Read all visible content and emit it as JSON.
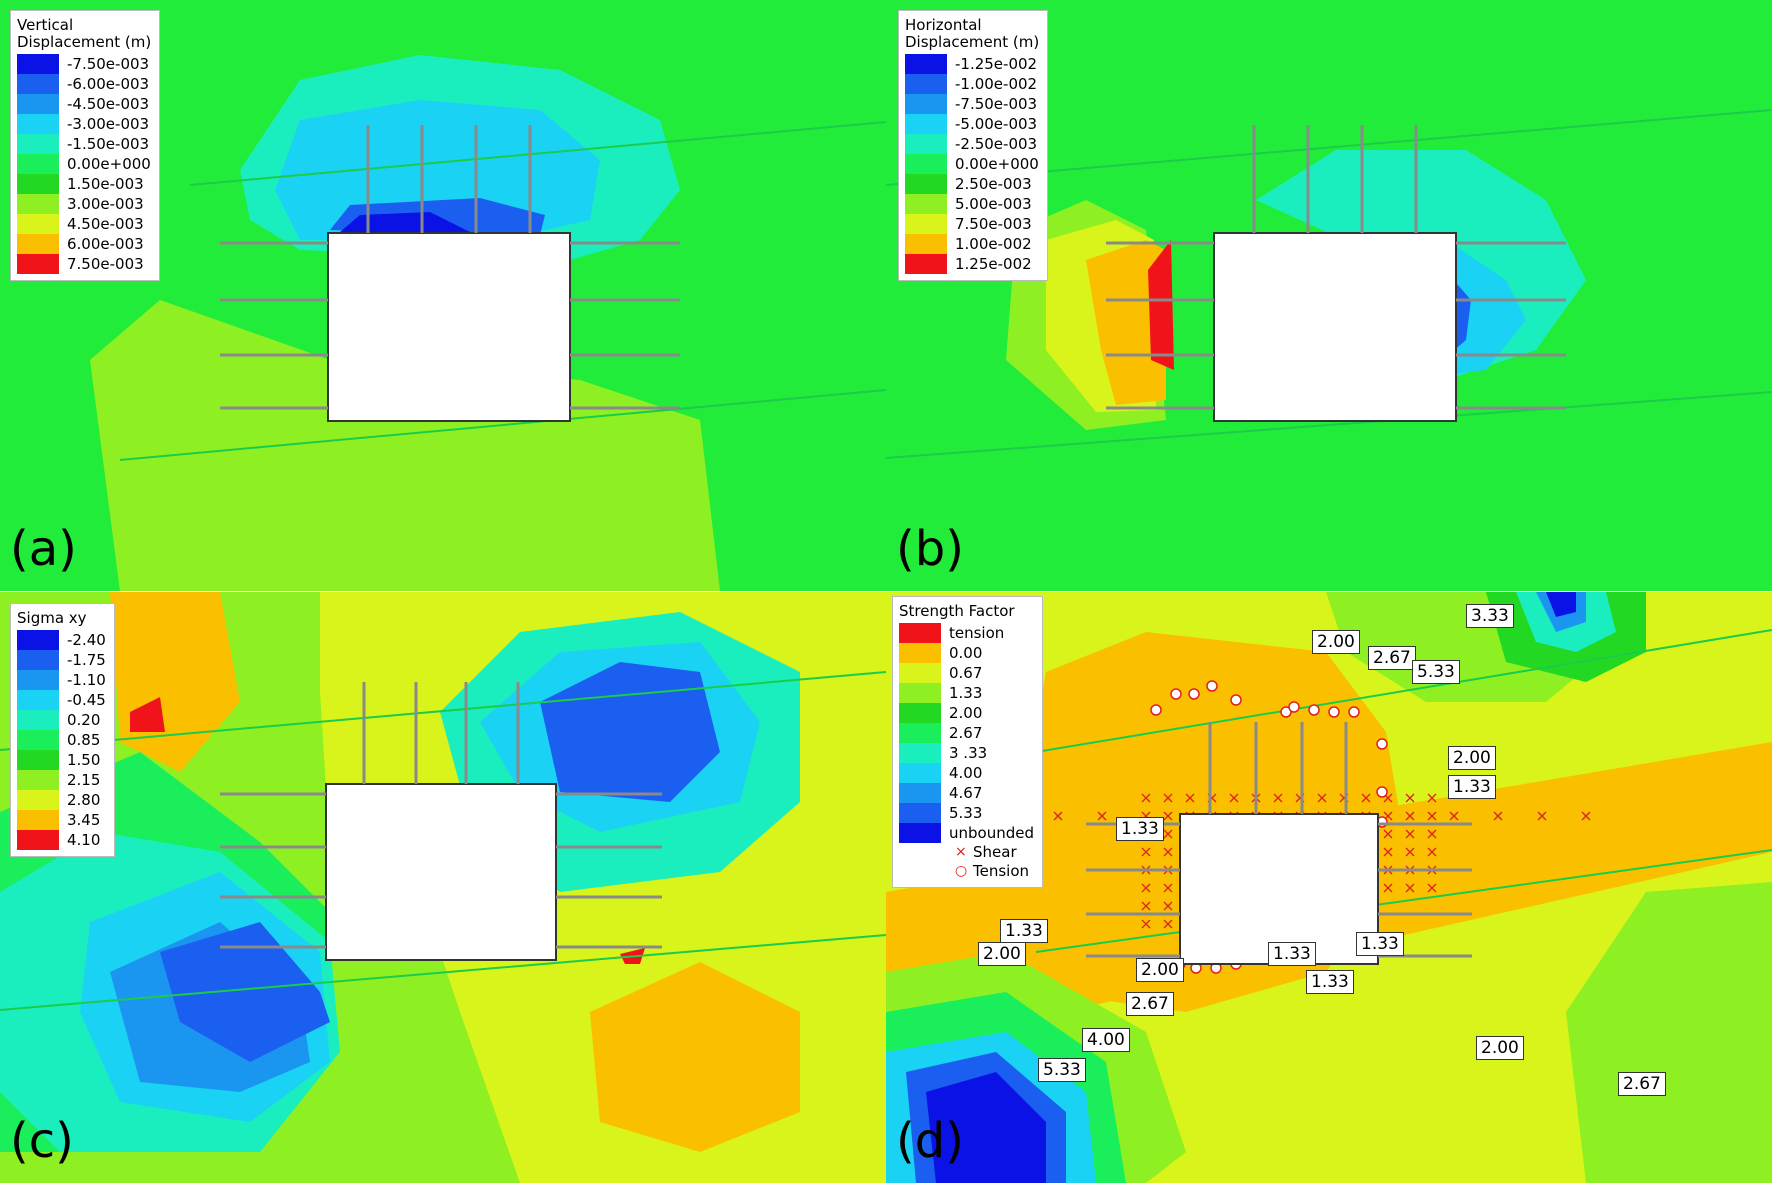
{
  "panels": {
    "a": {
      "letter": "(a)",
      "legend": {
        "title": "Vertical\nDisplacement (m)",
        "entries": [
          "-7.50e-003",
          "-6.00e-003",
          "-4.50e-003",
          "-3.00e-003",
          "-1.50e-003",
          "0.00e+000",
          "1.50e-003",
          "3.00e-003",
          "4.50e-003",
          "6.00e-003",
          "7.50e-003"
        ]
      }
    },
    "b": {
      "letter": "(b)",
      "legend": {
        "title": "Horizontal\nDisplacement (m)",
        "entries": [
          "-1.25e-002",
          "-1.00e-002",
          "-7.50e-003",
          "-5.00e-003",
          "-2.50e-003",
          "0.00e+000",
          "2.50e-003",
          "5.00e-003",
          "7.50e-003",
          "1.00e-002",
          "1.25e-002"
        ]
      }
    },
    "c": {
      "letter": "(c)",
      "legend": {
        "title": "Sigma xy",
        "entries": [
          "-2.40",
          "-1.75",
          "-1.10",
          "-0.45",
          "0.20",
          "0.85",
          "1.50",
          "2.15",
          "2.80",
          "3.45",
          "4.10"
        ]
      }
    },
    "d": {
      "letter": "(d)",
      "legend": {
        "title": "Strength Factor",
        "entries": [
          "tension",
          "0.00",
          "0.67",
          "1.33",
          "2.00",
          "2.67",
          "3 .33",
          "4.00",
          "4.67",
          "5.33",
          "unbounded"
        ],
        "marks": [
          {
            "glyph": "×",
            "label": "Shear"
          },
          {
            "glyph": "○",
            "label": "Tension"
          }
        ]
      },
      "labels": [
        "2.00",
        "2.67",
        "5.33",
        "3.33",
        "2.00",
        "1.33",
        "1.33",
        "1.33",
        "2.00",
        "1.33",
        "1.33",
        "2.00",
        "1.33",
        "2.67",
        "4.00",
        "5.33",
        "2.00",
        "2.67"
      ]
    }
  },
  "colors": {
    "scale_displacement": [
      "#0a12e6",
      "#1a5ff0",
      "#1a96f0",
      "#1ad2f4",
      "#1aeebe",
      "#1aee5a",
      "#22d822",
      "#8ef022",
      "#d8f41a",
      "#fac000",
      "#f0141a"
    ],
    "scale_sigma": [
      "#0a12e6",
      "#1a5ff0",
      "#1a96f0",
      "#1ad2f4",
      "#1aeebe",
      "#1aee5a",
      "#22d822",
      "#8ef022",
      "#d8f41a",
      "#fac000",
      "#f0141a"
    ],
    "scale_strength": [
      "#f0141a",
      "#fac000",
      "#d8f41a",
      "#8ef022",
      "#22d822",
      "#1aee5a",
      "#1aeebe",
      "#1ad2f4",
      "#1a96f0",
      "#1a5ff0",
      "#0a12e6"
    ],
    "background_green": "#22ec3a",
    "opening": "#ffffff",
    "bolt": "#8a8a8a",
    "mark": "#e02020"
  }
}
